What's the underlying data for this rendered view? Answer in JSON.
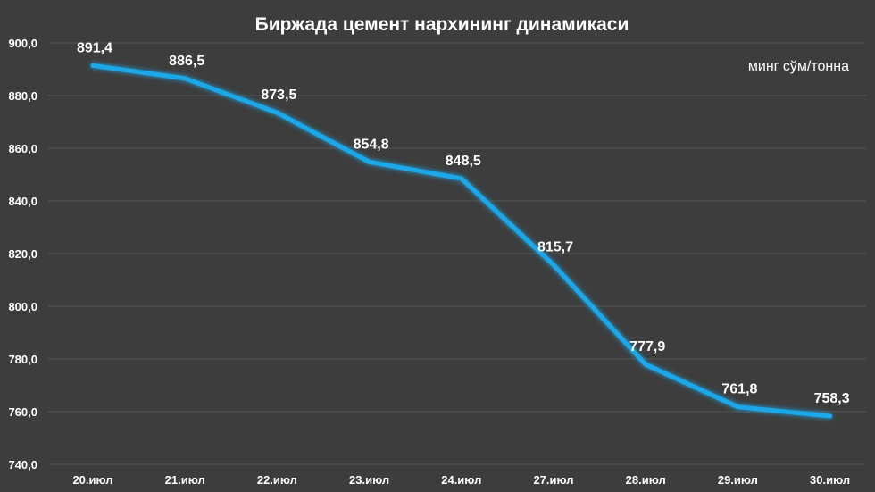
{
  "colors": {
    "background": "#3d3d3d",
    "line": "#1fa7e8",
    "grid": "#555555",
    "text": "#ffffff"
  },
  "chart_data": {
    "type": "line",
    "title": "Биржада цемент нархининг динамикаси",
    "unit_label": "минг сўм/тонна",
    "categories": [
      "20.июл",
      "21.июл",
      "22.июл",
      "23.июл",
      "24.июл",
      "27.июл",
      "28.июл",
      "29.июл",
      "30.июл"
    ],
    "series": [
      {
        "values": [
          891.4,
          886.5,
          873.5,
          854.8,
          848.5,
          815.7,
          777.9,
          761.8,
          758.3
        ],
        "labels": [
          "891,4",
          "886,5",
          "873,5",
          "854,8",
          "848,5",
          "815,7",
          "777,9",
          "761,8",
          "758,3"
        ]
      }
    ],
    "yticks": [
      "740,0",
      "760,0",
      "780,0",
      "800,0",
      "820,0",
      "840,0",
      "860,0",
      "880,0",
      "900,0"
    ],
    "ylim": [
      740,
      900
    ],
    "grid": true,
    "legend": "none"
  }
}
